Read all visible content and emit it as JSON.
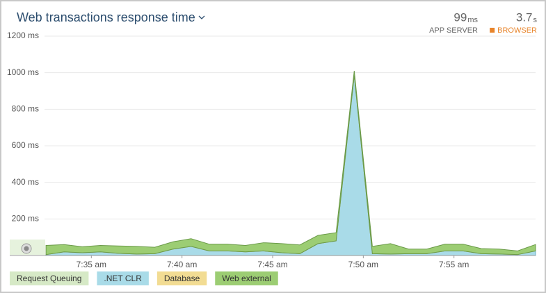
{
  "chart_data": {
    "type": "area",
    "title": "Web transactions response time",
    "stats": [
      {
        "value": "99",
        "unit": "ms",
        "label": "APP SERVER",
        "color": "#666666"
      },
      {
        "value": "3.7",
        "unit": "s",
        "label": "BROWSER",
        "color": "#e8842a"
      }
    ],
    "x": [
      32.5,
      33.5,
      34.5,
      35.5,
      36.5,
      37.5,
      38.5,
      39.5,
      40.5,
      41.5,
      42.5,
      43.5,
      44.5,
      45.5,
      46.5,
      47.5,
      48.5,
      49.5,
      50.5,
      51.5,
      52.5,
      53.5,
      54.5,
      55.5,
      56.5,
      57.5,
      58.5,
      59.5
    ],
    "xlim": [
      30.5,
      59.5
    ],
    "xticks": [
      {
        "value": 35,
        "label": "7:35 am"
      },
      {
        "value": 40,
        "label": "7:40 am"
      },
      {
        "value": 45,
        "label": "7:45 am"
      },
      {
        "value": 50,
        "label": "7:50 am"
      },
      {
        "value": 55,
        "label": "7:55 am"
      }
    ],
    "ylim": [
      0,
      1200
    ],
    "yticks": [
      {
        "value": 200,
        "label": "200 ms"
      },
      {
        "value": 400,
        "label": "400 ms"
      },
      {
        "value": 600,
        "label": "600 ms"
      },
      {
        "value": 800,
        "label": "800 ms"
      },
      {
        "value": 1000,
        "label": "1000 ms"
      },
      {
        "value": 1200,
        "label": "1200 ms"
      }
    ],
    "grid": true,
    "stacked": true,
    "series": [
      {
        "name": "Request Queuing",
        "color": "#d6e9c6",
        "stroke": "#b5d39c",
        "values": [
          0,
          0,
          0,
          0,
          0,
          0,
          0,
          0,
          0,
          0,
          0,
          0,
          0,
          0,
          0,
          0,
          0,
          0,
          0,
          0,
          0,
          0,
          0,
          0,
          0,
          0,
          0,
          0
        ]
      },
      {
        "name": ".NET CLR",
        "color": "#a9dbe8",
        "stroke": "#6fb3c6",
        "values": [
          5,
          20,
          15,
          20,
          12,
          8,
          10,
          35,
          50,
          25,
          25,
          20,
          25,
          15,
          10,
          65,
          80,
          985,
          10,
          8,
          10,
          10,
          25,
          25,
          10,
          8,
          5,
          25
        ]
      },
      {
        "name": "Database",
        "color": "#f2dc93",
        "stroke": "#d6bb5c",
        "values": [
          0,
          0,
          0,
          0,
          0,
          0,
          0,
          0,
          0,
          0,
          0,
          0,
          0,
          0,
          0,
          0,
          0,
          0,
          0,
          0,
          0,
          0,
          0,
          0,
          0,
          0,
          0,
          0
        ]
      },
      {
        "name": "Web external",
        "color": "#9ccd73",
        "stroke": "#6a9a48",
        "values": [
          50,
          40,
          33,
          35,
          40,
          42,
          35,
          40,
          42,
          37,
          37,
          35,
          45,
          50,
          48,
          45,
          45,
          25,
          40,
          57,
          25,
          25,
          37,
          37,
          28,
          27,
          20,
          35
        ]
      }
    ]
  }
}
